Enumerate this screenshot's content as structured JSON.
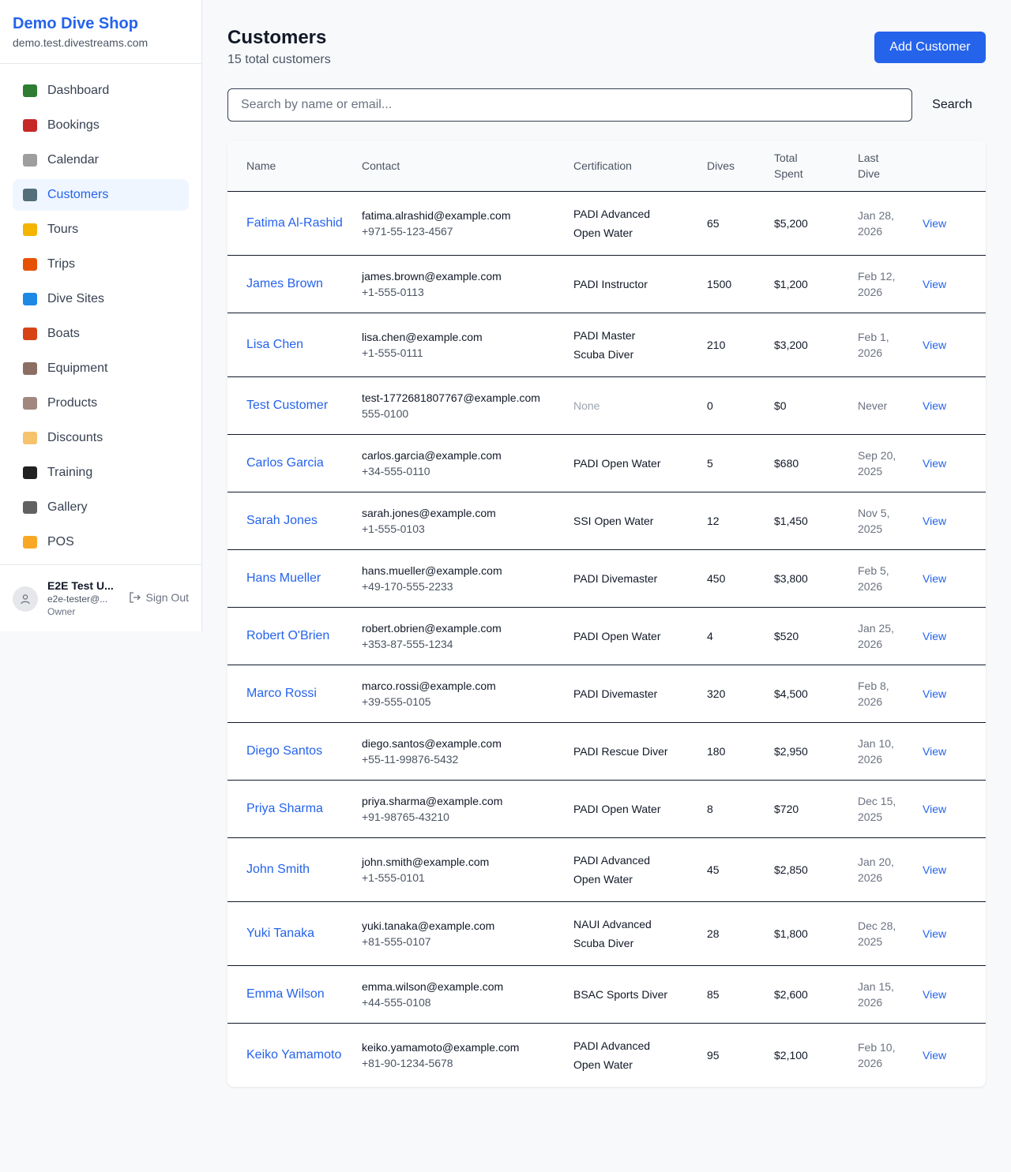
{
  "sidebar": {
    "shop_name": "Demo Dive Shop",
    "shop_domain": "demo.test.divestreams.com",
    "items": [
      {
        "label": "Dashboard",
        "icon": "bar-chart-icon",
        "color": "#2e7d32"
      },
      {
        "label": "Bookings",
        "icon": "calendar-icon",
        "color": "#c62828"
      },
      {
        "label": "Calendar",
        "icon": "tear-off-calendar-icon",
        "color": "#9e9e9e"
      },
      {
        "label": "Customers",
        "icon": "people-icon",
        "color": "#546e7a"
      },
      {
        "label": "Tours",
        "icon": "island-icon",
        "color": "#f4b400"
      },
      {
        "label": "Trips",
        "icon": "boat-icon",
        "color": "#e65100"
      },
      {
        "label": "Dive Sites",
        "icon": "wave-icon",
        "color": "#1e88e5"
      },
      {
        "label": "Boats",
        "icon": "sailboat-icon",
        "color": "#d84315"
      },
      {
        "label": "Equipment",
        "icon": "diving-mask-icon",
        "color": "#8d6e63"
      },
      {
        "label": "Products",
        "icon": "package-icon",
        "color": "#a1887f"
      },
      {
        "label": "Discounts",
        "icon": "tag-icon",
        "color": "#f6c26b"
      },
      {
        "label": "Training",
        "icon": "graduation-cap-icon",
        "color": "#212121"
      },
      {
        "label": "Gallery",
        "icon": "camera-icon",
        "color": "#616161"
      },
      {
        "label": "POS",
        "icon": "credit-card-icon",
        "color": "#f9a825"
      }
    ],
    "active_index": 3,
    "user": {
      "name": "E2E Test U...",
      "email": "e2e-tester@...",
      "role": "Owner",
      "sign_out_label": "Sign Out"
    }
  },
  "header": {
    "title": "Customers",
    "subtitle": "15 total customers",
    "add_button_label": "Add Customer"
  },
  "search": {
    "placeholder": "Search by name or email...",
    "value": "",
    "button_label": "Search"
  },
  "table": {
    "columns": [
      "Name",
      "Contact",
      "Certification",
      "Dives",
      "Total Spent",
      "Last Dive",
      ""
    ],
    "action_label": "View",
    "rows": [
      {
        "name": "Fatima Al-Rashid",
        "email": "fatima.alrashid@example.com",
        "phone": "+971-55-123-4567",
        "certification": "PADI Advanced Open Water",
        "dives": "65",
        "total_spent": "$5,200",
        "last_dive": "Jan 28, 2026"
      },
      {
        "name": "James Brown",
        "email": "james.brown@example.com",
        "phone": "+1-555-0113",
        "certification": "PADI Instructor",
        "dives": "1500",
        "total_spent": "$1,200",
        "last_dive": "Feb 12, 2026"
      },
      {
        "name": "Lisa Chen",
        "email": "lisa.chen@example.com",
        "phone": "+1-555-0111",
        "certification": "PADI Master Scuba Diver",
        "dives": "210",
        "total_spent": "$3,200",
        "last_dive": "Feb 1, 2026"
      },
      {
        "name": "Test Customer",
        "email": "test-1772681807767@example.com",
        "phone": "555-0100",
        "certification": "None",
        "dives": "0",
        "total_spent": "$0",
        "last_dive": "Never"
      },
      {
        "name": "Carlos Garcia",
        "email": "carlos.garcia@example.com",
        "phone": "+34-555-0110",
        "certification": "PADI Open Water",
        "dives": "5",
        "total_spent": "$680",
        "last_dive": "Sep 20, 2025"
      },
      {
        "name": "Sarah Jones",
        "email": "sarah.jones@example.com",
        "phone": "+1-555-0103",
        "certification": "SSI Open Water",
        "dives": "12",
        "total_spent": "$1,450",
        "last_dive": "Nov 5, 2025"
      },
      {
        "name": "Hans Mueller",
        "email": "hans.mueller@example.com",
        "phone": "+49-170-555-2233",
        "certification": "PADI Divemaster",
        "dives": "450",
        "total_spent": "$3,800",
        "last_dive": "Feb 5, 2026"
      },
      {
        "name": "Robert O'Brien",
        "email": "robert.obrien@example.com",
        "phone": "+353-87-555-1234",
        "certification": "PADI Open Water",
        "dives": "4",
        "total_spent": "$520",
        "last_dive": "Jan 25, 2026"
      },
      {
        "name": "Marco Rossi",
        "email": "marco.rossi@example.com",
        "phone": "+39-555-0105",
        "certification": "PADI Divemaster",
        "dives": "320",
        "total_spent": "$4,500",
        "last_dive": "Feb 8, 2026"
      },
      {
        "name": "Diego Santos",
        "email": "diego.santos@example.com",
        "phone": "+55-11-99876-5432",
        "certification": "PADI Rescue Diver",
        "dives": "180",
        "total_spent": "$2,950",
        "last_dive": "Jan 10, 2026"
      },
      {
        "name": "Priya Sharma",
        "email": "priya.sharma@example.com",
        "phone": "+91-98765-43210",
        "certification": "PADI Open Water",
        "dives": "8",
        "total_spent": "$720",
        "last_dive": "Dec 15, 2025"
      },
      {
        "name": "John Smith",
        "email": "john.smith@example.com",
        "phone": "+1-555-0101",
        "certification": "PADI Advanced Open Water",
        "dives": "45",
        "total_spent": "$2,850",
        "last_dive": "Jan 20, 2026"
      },
      {
        "name": "Yuki Tanaka",
        "email": "yuki.tanaka@example.com",
        "phone": "+81-555-0107",
        "certification": "NAUI Advanced Scuba Diver",
        "dives": "28",
        "total_spent": "$1,800",
        "last_dive": "Dec 28, 2025"
      },
      {
        "name": "Emma Wilson",
        "email": "emma.wilson@example.com",
        "phone": "+44-555-0108",
        "certification": "BSAC Sports Diver",
        "dives": "85",
        "total_spent": "$2,600",
        "last_dive": "Jan 15, 2026"
      },
      {
        "name": "Keiko Yamamoto",
        "email": "keiko.yamamoto@example.com",
        "phone": "+81-90-1234-5678",
        "certification": "PADI Advanced Open Water",
        "dives": "95",
        "total_spent": "$2,100",
        "last_dive": "Feb 10, 2026"
      }
    ]
  }
}
